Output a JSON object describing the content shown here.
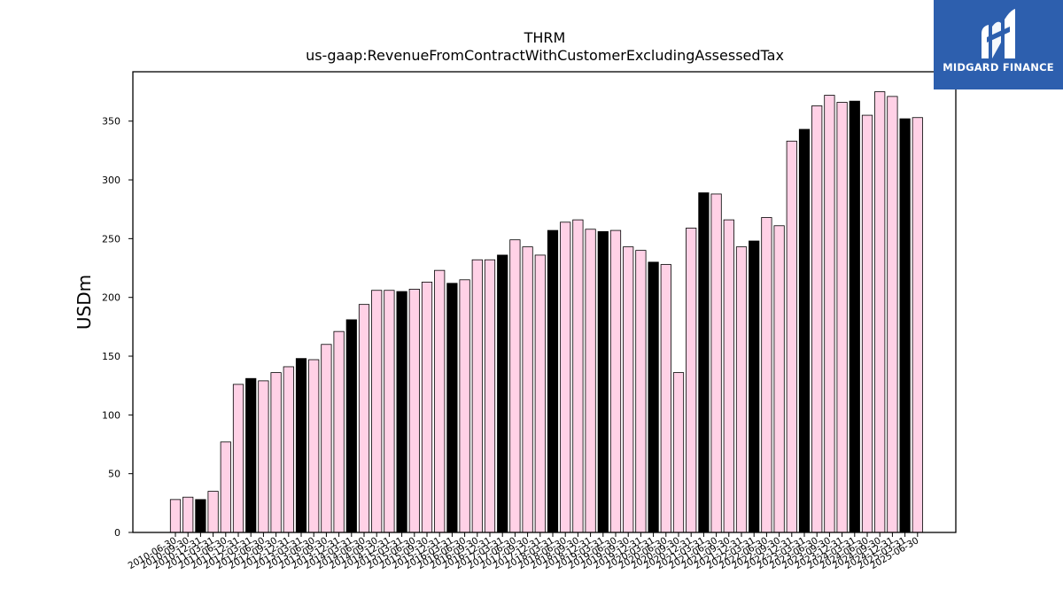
{
  "chart_data": {
    "type": "bar",
    "title": "THRM",
    "subtitle": "us-gaap:RevenueFromContractWithCustomerExcludingAssessedTax",
    "xlabel": "",
    "ylabel": "USDm",
    "ylim": [
      0,
      392
    ],
    "yticks": [
      0,
      50,
      100,
      150,
      200,
      250,
      300,
      350
    ],
    "grid": false,
    "colors": {
      "pink": "#ffd1e6",
      "black": "#000000",
      "edge": "#000000"
    },
    "categories": [
      "2010-06-30",
      "2010-09-30",
      "2010-12-31",
      "2011-03-31",
      "2011-06-30",
      "2011-12-31",
      "2012-03-31",
      "2012-06-30",
      "2012-09-30",
      "2012-12-31",
      "2013-03-31",
      "2013-06-30",
      "2013-09-30",
      "2013-12-31",
      "2014-03-31",
      "2014-06-30",
      "2014-09-30",
      "2014-12-31",
      "2015-03-31",
      "2015-06-30",
      "2015-09-30",
      "2015-12-31",
      "2016-03-31",
      "2016-06-30",
      "2016-09-30",
      "2016-12-31",
      "2017-03-31",
      "2017-06-30",
      "2017-09-30",
      "2017-12-31",
      "2018-03-31",
      "2018-06-30",
      "2018-09-30",
      "2018-12-31",
      "2019-03-31",
      "2019-06-30",
      "2019-09-30",
      "2019-12-31",
      "2020-03-31",
      "2020-06-30",
      "2020-09-30",
      "2020-12-31",
      "2021-03-31",
      "2021-06-30",
      "2021-09-30",
      "2021-12-31",
      "2022-03-31",
      "2022-06-30",
      "2022-09-30",
      "2022-12-31",
      "2023-03-31",
      "2023-06-30",
      "2023-09-30",
      "2023-12-31",
      "2024-03-31",
      "2024-06-30",
      "2024-09-30",
      "2024-12-31",
      "2025-03-31",
      "2025-06-30"
    ],
    "values": [
      28,
      30,
      28,
      35,
      77,
      126,
      131,
      129,
      136,
      141,
      148,
      147,
      160,
      171,
      181,
      194,
      206,
      206,
      205,
      207,
      213,
      223,
      212,
      215,
      232,
      232,
      236,
      249,
      243,
      236,
      257,
      264,
      266,
      258,
      256,
      257,
      243,
      240,
      230,
      228,
      136,
      259,
      289,
      288,
      266,
      243,
      248,
      268,
      261,
      333,
      343,
      363,
      372,
      366,
      367,
      355,
      375,
      371,
      352,
      353
    ],
    "bar_colors": [
      "pink",
      "pink",
      "black",
      "pink",
      "pink",
      "pink",
      "black",
      "pink",
      "pink",
      "pink",
      "black",
      "pink",
      "pink",
      "pink",
      "black",
      "pink",
      "pink",
      "pink",
      "black",
      "pink",
      "pink",
      "pink",
      "black",
      "pink",
      "pink",
      "pink",
      "black",
      "pink",
      "pink",
      "pink",
      "black",
      "pink",
      "pink",
      "pink",
      "black",
      "pink",
      "pink",
      "pink",
      "black",
      "pink",
      "pink",
      "pink",
      "black",
      "pink",
      "pink",
      "pink",
      "black",
      "pink",
      "pink",
      "pink",
      "black",
      "pink",
      "pink",
      "pink",
      "black",
      "pink",
      "pink",
      "pink",
      "black",
      "pink"
    ]
  },
  "logo": {
    "text": "MIDGARD FINANCE",
    "background": "#2d5fae"
  }
}
